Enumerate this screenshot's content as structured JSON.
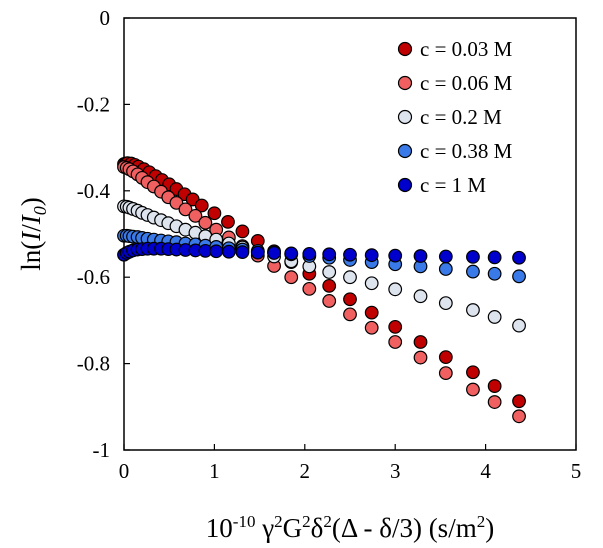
{
  "chart_data": {
    "type": "scatter",
    "xlabel": "10-10 γ2G2δ2(Δ - δ/3) (s/m2)",
    "xlabel_parts": {
      "base": "10",
      "base_exp": "-10",
      "gamma": " γ",
      "gamma_exp": "2",
      "g": "G",
      "g_exp": "2",
      "delta": "δ",
      "delta_exp": "2",
      "rest": "(Δ - δ/3) (s/m",
      "unit_exp": "2",
      "close": ")"
    },
    "ylabel": "ln(I/I0)",
    "ylabel_parts": {
      "pre": "ln(",
      "italic": "I",
      "slash": "/",
      "italic2": "I",
      "sub": "0",
      "post": ")"
    },
    "xlim": [
      0,
      5
    ],
    "ylim": [
      -1,
      0
    ],
    "xticks": [
      "0",
      "1",
      "2",
      "3",
      "4",
      "5"
    ],
    "yticks": [
      "0",
      "-0.2",
      "-0.4",
      "-0.6",
      "-0.8",
      "-1"
    ],
    "legend_position": "top-right",
    "grid": false,
    "series": [
      {
        "name": "c = 0.03 M",
        "color": "#c00000",
        "x": [
          0,
          0.02,
          0.04,
          0.08,
          0.12,
          0.16,
          0.22,
          0.28,
          0.35,
          0.42,
          0.5,
          0.58,
          0.67,
          0.76,
          0.86,
          1.0,
          1.15,
          1.31,
          1.48,
          1.66,
          1.85,
          2.05,
          2.27,
          2.5,
          2.74,
          3.0,
          3.28,
          3.56,
          3.86,
          4.1,
          4.37
        ],
        "y": [
          -0.338,
          -0.337,
          -0.336,
          -0.337,
          -0.34,
          -0.344,
          -0.35,
          -0.357,
          -0.366,
          -0.375,
          -0.385,
          -0.396,
          -0.408,
          -0.42,
          -0.434,
          -0.452,
          -0.472,
          -0.494,
          -0.516,
          -0.54,
          -0.565,
          -0.592,
          -0.62,
          -0.651,
          -0.682,
          -0.715,
          -0.75,
          -0.785,
          -0.82,
          -0.852,
          -0.887
        ]
      },
      {
        "name": "c = 0.06 M",
        "color": "#f06060",
        "x": [
          0,
          0.03,
          0.06,
          0.1,
          0.15,
          0.2,
          0.26,
          0.33,
          0.41,
          0.49,
          0.58,
          0.68,
          0.79,
          0.9,
          1.02,
          1.16,
          1.31,
          1.48,
          1.66,
          1.85,
          2.05,
          2.27,
          2.5,
          2.74,
          3.0,
          3.28,
          3.56,
          3.86,
          4.1,
          4.37
        ],
        "y": [
          -0.345,
          -0.347,
          -0.35,
          -0.355,
          -0.362,
          -0.37,
          -0.38,
          -0.39,
          -0.402,
          -0.415,
          -0.428,
          -0.443,
          -0.458,
          -0.474,
          -0.49,
          -0.508,
          -0.528,
          -0.55,
          -0.574,
          -0.6,
          -0.627,
          -0.655,
          -0.686,
          -0.717,
          -0.75,
          -0.786,
          -0.822,
          -0.86,
          -0.889,
          -0.922
        ]
      },
      {
        "name": "c = 0.2 M",
        "color": "#dde4ee",
        "x": [
          0,
          0.03,
          0.06,
          0.1,
          0.15,
          0.2,
          0.26,
          0.33,
          0.41,
          0.49,
          0.58,
          0.68,
          0.79,
          0.9,
          1.02,
          1.16,
          1.31,
          1.48,
          1.66,
          1.85,
          2.05,
          2.27,
          2.5,
          2.74,
          3.0,
          3.28,
          3.56,
          3.86,
          4.1,
          4.37
        ],
        "y": [
          -0.436,
          -0.437,
          -0.439,
          -0.442,
          -0.446,
          -0.451,
          -0.456,
          -0.462,
          -0.468,
          -0.475,
          -0.482,
          -0.49,
          -0.497,
          -0.505,
          -0.513,
          -0.522,
          -0.531,
          -0.541,
          -0.552,
          -0.563,
          -0.575,
          -0.588,
          -0.6,
          -0.614,
          -0.628,
          -0.644,
          -0.66,
          -0.676,
          -0.692,
          -0.712
        ]
      },
      {
        "name": "c = 0.38 M",
        "color": "#3a7ae8",
        "x": [
          0,
          0.03,
          0.06,
          0.1,
          0.15,
          0.2,
          0.26,
          0.33,
          0.41,
          0.49,
          0.58,
          0.68,
          0.79,
          0.9,
          1.02,
          1.16,
          1.31,
          1.48,
          1.66,
          1.85,
          2.05,
          2.27,
          2.5,
          2.74,
          3.0,
          3.28,
          3.56,
          3.86,
          4.1,
          4.37
        ],
        "y": [
          -0.504,
          -0.504,
          -0.505,
          -0.506,
          -0.507,
          -0.509,
          -0.511,
          -0.513,
          -0.515,
          -0.517,
          -0.519,
          -0.522,
          -0.524,
          -0.527,
          -0.53,
          -0.533,
          -0.536,
          -0.539,
          -0.543,
          -0.547,
          -0.551,
          -0.555,
          -0.56,
          -0.565,
          -0.57,
          -0.575,
          -0.581,
          -0.587,
          -0.592,
          -0.598
        ]
      },
      {
        "name": "c = 1 M",
        "color": "#0000cc",
        "x": [
          0,
          0.03,
          0.06,
          0.1,
          0.15,
          0.2,
          0.26,
          0.33,
          0.41,
          0.49,
          0.58,
          0.68,
          0.79,
          0.9,
          1.02,
          1.16,
          1.31,
          1.48,
          1.66,
          1.85,
          2.05,
          2.27,
          2.5,
          2.74,
          3.0,
          3.28,
          3.56,
          3.86,
          4.1,
          4.37
        ],
        "y": [
          -0.548,
          -0.544,
          -0.541,
          -0.538,
          -0.536,
          -0.535,
          -0.534,
          -0.534,
          -0.534,
          -0.535,
          -0.536,
          -0.537,
          -0.538,
          -0.539,
          -0.54,
          -0.541,
          -0.542,
          -0.543,
          -0.544,
          -0.545,
          -0.546,
          -0.547,
          -0.548,
          -0.549,
          -0.55,
          -0.551,
          -0.552,
          -0.553,
          -0.554,
          -0.555
        ]
      }
    ]
  }
}
